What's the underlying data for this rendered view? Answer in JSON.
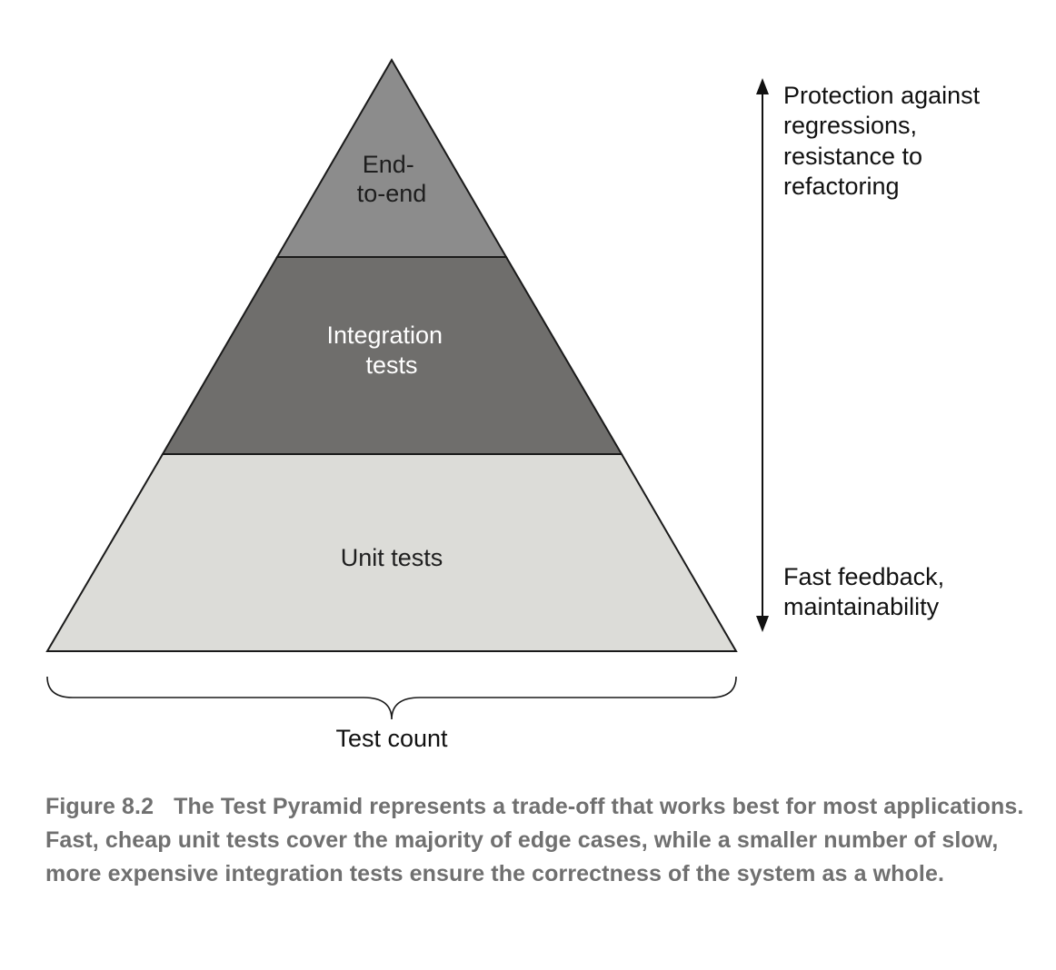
{
  "pyramid": {
    "top_layer": {
      "lines": [
        "End-",
        "to-end"
      ],
      "fill": "#8c8c8c",
      "text_color": "#1e1e1e"
    },
    "middle_layer": {
      "lines": [
        "Integration",
        "tests"
      ],
      "fill": "#6f6e6c",
      "text_color": "#ffffff"
    },
    "bottom_layer": {
      "lines": [
        "Unit tests"
      ],
      "fill": "#dcdcd8",
      "text_color": "#1e1e1e"
    }
  },
  "axis": {
    "top_label": [
      "Protection against",
      "regressions,",
      "resistance to",
      "refactoring"
    ],
    "bottom_label": [
      "Fast feedback,",
      "maintainability"
    ]
  },
  "brace_label": "Test count",
  "caption": {
    "number": "Figure 8.2",
    "text": "The Test Pyramid represents a trade-off that works best for most applications. Fast, cheap unit tests cover the majority of edge cases, while a smaller number of slow, more expensive integration tests ensure the correctness of the system as a whole."
  }
}
